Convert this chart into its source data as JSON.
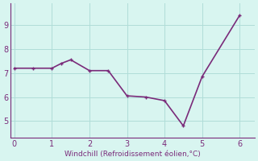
{
  "x": [
    0,
    0.5,
    1.0,
    1.25,
    1.5,
    2.0,
    2.5,
    3.0,
    3.5,
    4.0,
    4.5,
    5.0,
    6.0
  ],
  "y": [
    7.2,
    7.2,
    7.2,
    7.4,
    7.55,
    7.1,
    7.1,
    6.05,
    6.0,
    5.85,
    4.8,
    6.85,
    9.4
  ],
  "line_color": "#7a2b7a",
  "marker_color": "#7a2b7a",
  "bg_color": "#d8f5f0",
  "grid_color": "#b0ddd8",
  "xlabel": "Windchill (Refroidissement éolien,°C)",
  "xlabel_color": "#7a2b7a",
  "tick_color": "#7a2b7a",
  "xlim": [
    -0.1,
    6.4
  ],
  "ylim": [
    4.3,
    9.9
  ],
  "xticks": [
    0,
    1,
    2,
    3,
    4,
    5,
    6
  ],
  "yticks": [
    5,
    6,
    7,
    8,
    9
  ],
  "marker_size": 3.5,
  "linewidth": 1.2
}
